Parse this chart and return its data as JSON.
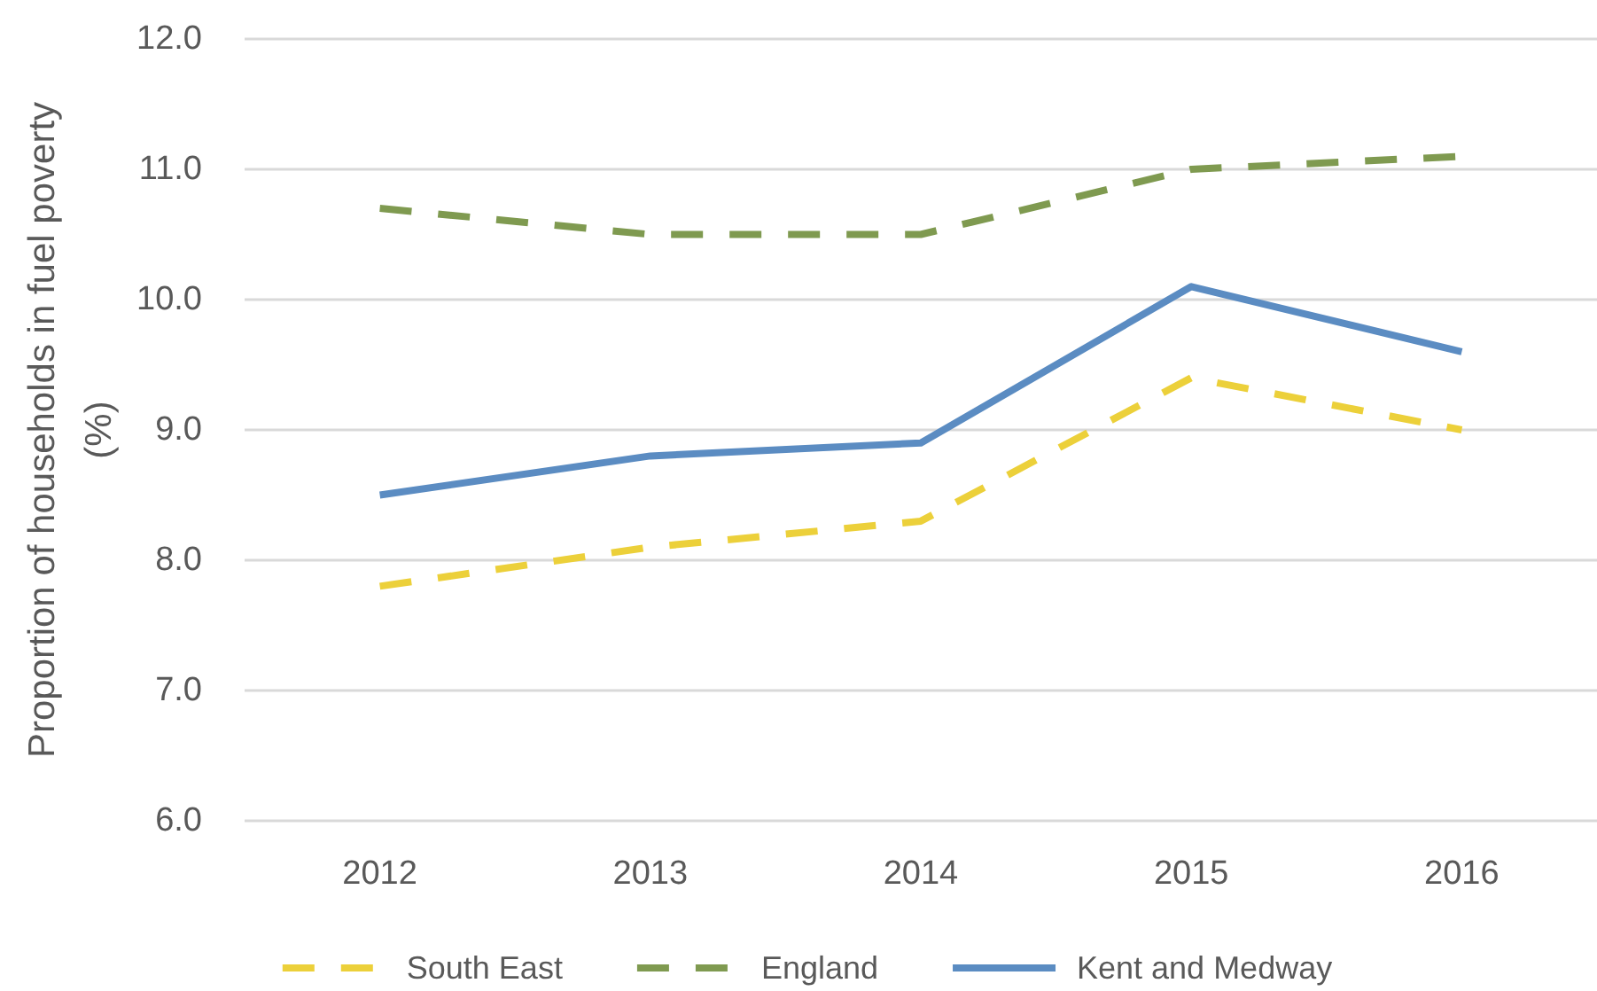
{
  "chart_data": {
    "type": "line",
    "ylabel": "Proportion of households in fuel poverty (%)",
    "categories": [
      "2012",
      "2013",
      "2014",
      "2015",
      "2016"
    ],
    "series": [
      {
        "name": "South East",
        "color": "#ecd03a",
        "line_style": "dashed",
        "values": [
          7.8,
          8.1,
          8.3,
          9.4,
          9.0
        ]
      },
      {
        "name": "England",
        "color": "#7f9a50",
        "line_style": "dashed",
        "values": [
          10.7,
          10.5,
          10.5,
          11.0,
          11.1
        ]
      },
      {
        "name": "Kent and Medway",
        "color": "#5b8cc2",
        "line_style": "solid",
        "values": [
          8.5,
          8.8,
          8.9,
          10.1,
          9.6
        ]
      }
    ],
    "ylim": [
      6,
      12
    ],
    "yticks": [
      {
        "value": 6,
        "label": "6.0"
      },
      {
        "value": 7,
        "label": "7.0"
      },
      {
        "value": 8,
        "label": "8.0"
      },
      {
        "value": 9,
        "label": "9.0"
      },
      {
        "value": 10,
        "label": "10.0"
      },
      {
        "value": 11,
        "label": "11.0"
      },
      {
        "value": 12,
        "label": "12.0"
      }
    ],
    "grid": "y",
    "legend": "bottom"
  }
}
